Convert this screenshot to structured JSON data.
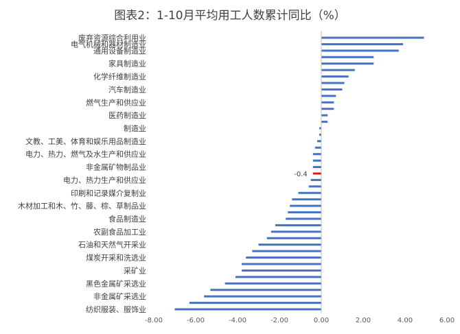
{
  "chart_data": {
    "type": "bar",
    "orientation": "horizontal",
    "title": "图表2：1-10月平均用工人数累计同比（%）",
    "categories": [
      "废弃资源综合利用业",
      "电气机械和器材制造业",
      "通用设备制造业",
      "",
      "家具制造业",
      "",
      "化学纤维制造业",
      "",
      "汽车制造业",
      "",
      "燃气生产和供应业",
      "",
      "医药制造业",
      "",
      "制造业",
      "",
      "文教、工美、体育和娱乐用品制造业",
      "",
      "电力、热力、燃气及水生产和供应业",
      "",
      "非金属矿物制品业",
      "",
      "电力、热力生产和供应业",
      "",
      "印刷和记录媒介复制业",
      "",
      "木材加工和木、竹、藤、棕、草制品业",
      "",
      "食品制造业",
      "",
      "农副食品加工业",
      "",
      "石油和天然气开采业",
      "",
      "煤炭开采和洗选业",
      "",
      "采矿业",
      "",
      "黑色金属矿采选业",
      "",
      "非金属矿采选业",
      "",
      "纺织服装、服饰业"
    ],
    "values": [
      4.9,
      3.9,
      3.7,
      2.5,
      2.5,
      1.6,
      1.3,
      1.1,
      1.0,
      0.7,
      0.6,
      0.6,
      0.3,
      0.3,
      -0.1,
      -0.1,
      -0.2,
      -0.3,
      -0.4,
      -0.4,
      -0.4,
      -0.4,
      -0.5,
      -0.6,
      -1.1,
      -1.4,
      -1.5,
      -1.6,
      -1.7,
      -2.2,
      -2.4,
      -2.6,
      -3.0,
      -3.3,
      -3.6,
      -3.8,
      -3.8,
      -4.1,
      -4.6,
      -5.3,
      -5.6,
      -6.3,
      -7.0
    ],
    "highlight_index": 21,
    "highlight_label": "-0.4",
    "xlim": [
      -8.0,
      6.0
    ],
    "xticks": [
      -8.0,
      -6.0,
      -4.0,
      -2.0,
      0.0,
      2.0,
      4.0,
      6.0
    ],
    "xtick_labels": [
      "-8.00",
      "-6.00",
      "-4.00",
      "-2.00",
      "0.00",
      "2.00",
      "4.00",
      "6.00"
    ],
    "bar_color": "#4472C4",
    "highlight_color": "#E8101A",
    "grid": false,
    "legend": "none"
  }
}
